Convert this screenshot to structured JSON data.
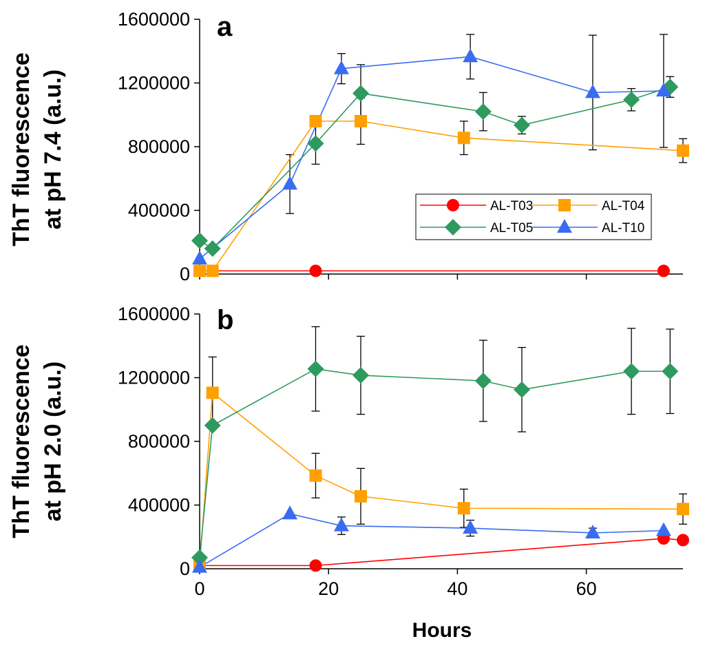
{
  "figure": {
    "x_axis_label": "Hours"
  },
  "styles": {
    "AL-T03": {
      "color": "#ff0000",
      "marker": "circle"
    },
    "AL-T04": {
      "color": "#ffa000",
      "marker": "square"
    },
    "AL-T05": {
      "color": "#2e9a5e",
      "marker": "diamond"
    },
    "AL-T10": {
      "color": "#3a6cf0",
      "marker": "triangle"
    }
  },
  "chart_data": [
    {
      "type": "line",
      "panel": "a",
      "title": "",
      "ylabel_lines": [
        "ThT fluorescence",
        "at pH 7.4 (a.u.)"
      ],
      "xlabel": "Hours",
      "xlim": [
        0,
        75
      ],
      "ylim": [
        0,
        1600000
      ],
      "xticks": [
        0,
        20,
        40,
        60
      ],
      "yticks": [
        0,
        400000,
        800000,
        1200000,
        1600000
      ],
      "ytick_labels": [
        "0",
        "400000",
        "800000",
        "1200000",
        "1600000"
      ],
      "grid": false,
      "legend": {
        "placement": "bottom-right",
        "entries": [
          "AL-T03",
          "AL-T04",
          "AL-T05",
          "AL-T10"
        ]
      },
      "series": [
        {
          "name": "AL-T03",
          "x": [
            0,
            18,
            72
          ],
          "y": [
            20000,
            20000,
            20000
          ],
          "err": [
            0,
            0,
            0
          ]
        },
        {
          "name": "AL-T04",
          "x": [
            0,
            2,
            18,
            25,
            41,
            75
          ],
          "y": [
            20000,
            20000,
            960000,
            960000,
            855000,
            775000
          ],
          "err": [
            0,
            0,
            0,
            145000,
            105000,
            75000
          ]
        },
        {
          "name": "AL-T05",
          "x": [
            0,
            2,
            18,
            25,
            44,
            50,
            67,
            73
          ],
          "y": [
            210000,
            160000,
            820000,
            1135000,
            1020000,
            935000,
            1095000,
            1175000
          ],
          "err": [
            0,
            0,
            130000,
            180000,
            120000,
            55000,
            70000,
            65000
          ]
        },
        {
          "name": "AL-T10",
          "x": [
            0,
            14,
            22,
            42,
            61,
            72
          ],
          "y": [
            95000,
            565000,
            1290000,
            1365000,
            1140000,
            1150000
          ],
          "err": [
            0,
            185000,
            95000,
            140000,
            360000,
            355000
          ]
        }
      ]
    },
    {
      "type": "line",
      "panel": "b",
      "title": "",
      "ylabel_lines": [
        "ThT fluorescence",
        "at pH 2.0 (a.u.)"
      ],
      "xlabel": "Hours",
      "xlim": [
        0,
        75
      ],
      "ylim": [
        0,
        1600000
      ],
      "xticks": [
        0,
        20,
        40,
        60
      ],
      "xtick_labels": [
        "0",
        "20",
        "40",
        "60"
      ],
      "yticks": [
        0,
        400000,
        800000,
        1200000,
        1600000
      ],
      "ytick_labels": [
        "0",
        "400000",
        "800000",
        "1200000",
        "1600000"
      ],
      "grid": false,
      "series": [
        {
          "name": "AL-T03",
          "x": [
            0,
            18,
            72,
            75
          ],
          "y": [
            20000,
            20000,
            190000,
            180000
          ],
          "err": [
            0,
            0,
            0,
            0
          ]
        },
        {
          "name": "AL-T04",
          "x": [
            0,
            2,
            18,
            25,
            41,
            75
          ],
          "y": [
            20000,
            1105000,
            585000,
            455000,
            380000,
            375000
          ],
          "err": [
            0,
            225000,
            140000,
            175000,
            120000,
            95000
          ]
        },
        {
          "name": "AL-T05",
          "x": [
            0,
            2,
            18,
            25,
            44,
            50,
            67,
            73
          ],
          "y": [
            70000,
            900000,
            1255000,
            1215000,
            1180000,
            1125000,
            1240000,
            1240000
          ],
          "err": [
            0,
            0,
            265000,
            245000,
            255000,
            265000,
            270000,
            265000
          ]
        },
        {
          "name": "AL-T10",
          "x": [
            0,
            14,
            22,
            42,
            61,
            72
          ],
          "y": [
            10000,
            345000,
            270000,
            255000,
            225000,
            240000
          ],
          "err": [
            0,
            0,
            55000,
            50000,
            30000,
            0
          ]
        }
      ]
    }
  ]
}
